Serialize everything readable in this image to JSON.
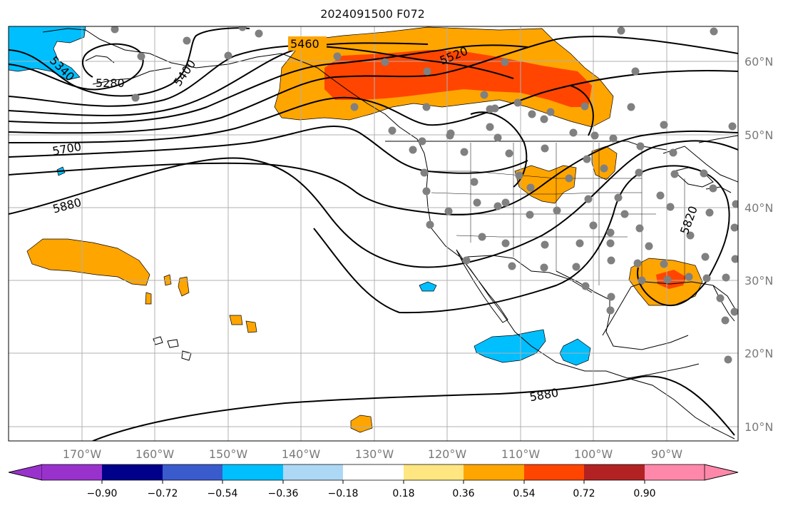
{
  "title": "2024091500 F072",
  "lat_labels": [
    "60°N",
    "50°N",
    "40°N",
    "30°N",
    "20°N",
    "10°N"
  ],
  "lon_labels": [
    "170°W",
    "160°W",
    "150°W",
    "140°W",
    "130°W",
    "120°W",
    "110°W",
    "100°W",
    "90°W"
  ],
  "contour_labels": [
    "5460",
    "5520",
    "5340",
    "5280",
    "5400",
    "5700",
    "5880",
    "5880",
    "5820"
  ],
  "colorbar": {
    "tick_labels": [
      "−0.90",
      "−0.72",
      "−0.54",
      "−0.36",
      "−0.18",
      "0.18",
      "0.36",
      "0.54",
      "0.72",
      "0.90"
    ],
    "colors": [
      "#9932cc",
      "#00008b",
      "#3a5bcc",
      "#00bfff",
      "#add8f5",
      "#ffffff",
      "#ffe680",
      "#ffa500",
      "#ff4500",
      "#b22222",
      "#ff88aa"
    ]
  },
  "palette": {
    "orange": "#ffa500",
    "red_orange": "#ff4500",
    "dark_red": "#b22222",
    "deep_sky_blue": "#00bfff",
    "station_dot": "#808080",
    "grid": "#b0b0b0"
  }
}
